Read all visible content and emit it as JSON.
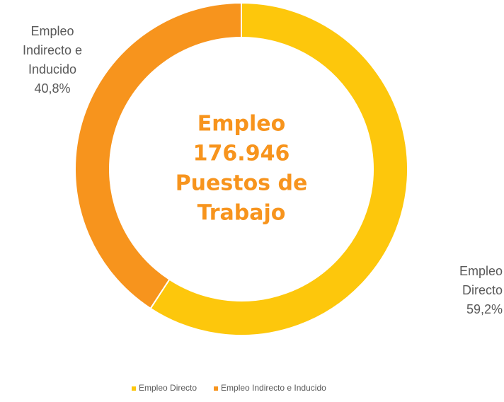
{
  "chart_data": {
    "type": "donut",
    "categories": [
      "Empleo Directo",
      "Empleo Indirecto e Inducido"
    ],
    "values": [
      59.2,
      40.8
    ],
    "value_labels": [
      "59,2%",
      "40,8%"
    ],
    "colors": [
      "#fdc70c",
      "#f7941d"
    ],
    "center_text": [
      "Empleo",
      "176.946",
      "Puestos de",
      "Trabajo"
    ],
    "center_color": "#f7941d",
    "legend": "bottom"
  }
}
